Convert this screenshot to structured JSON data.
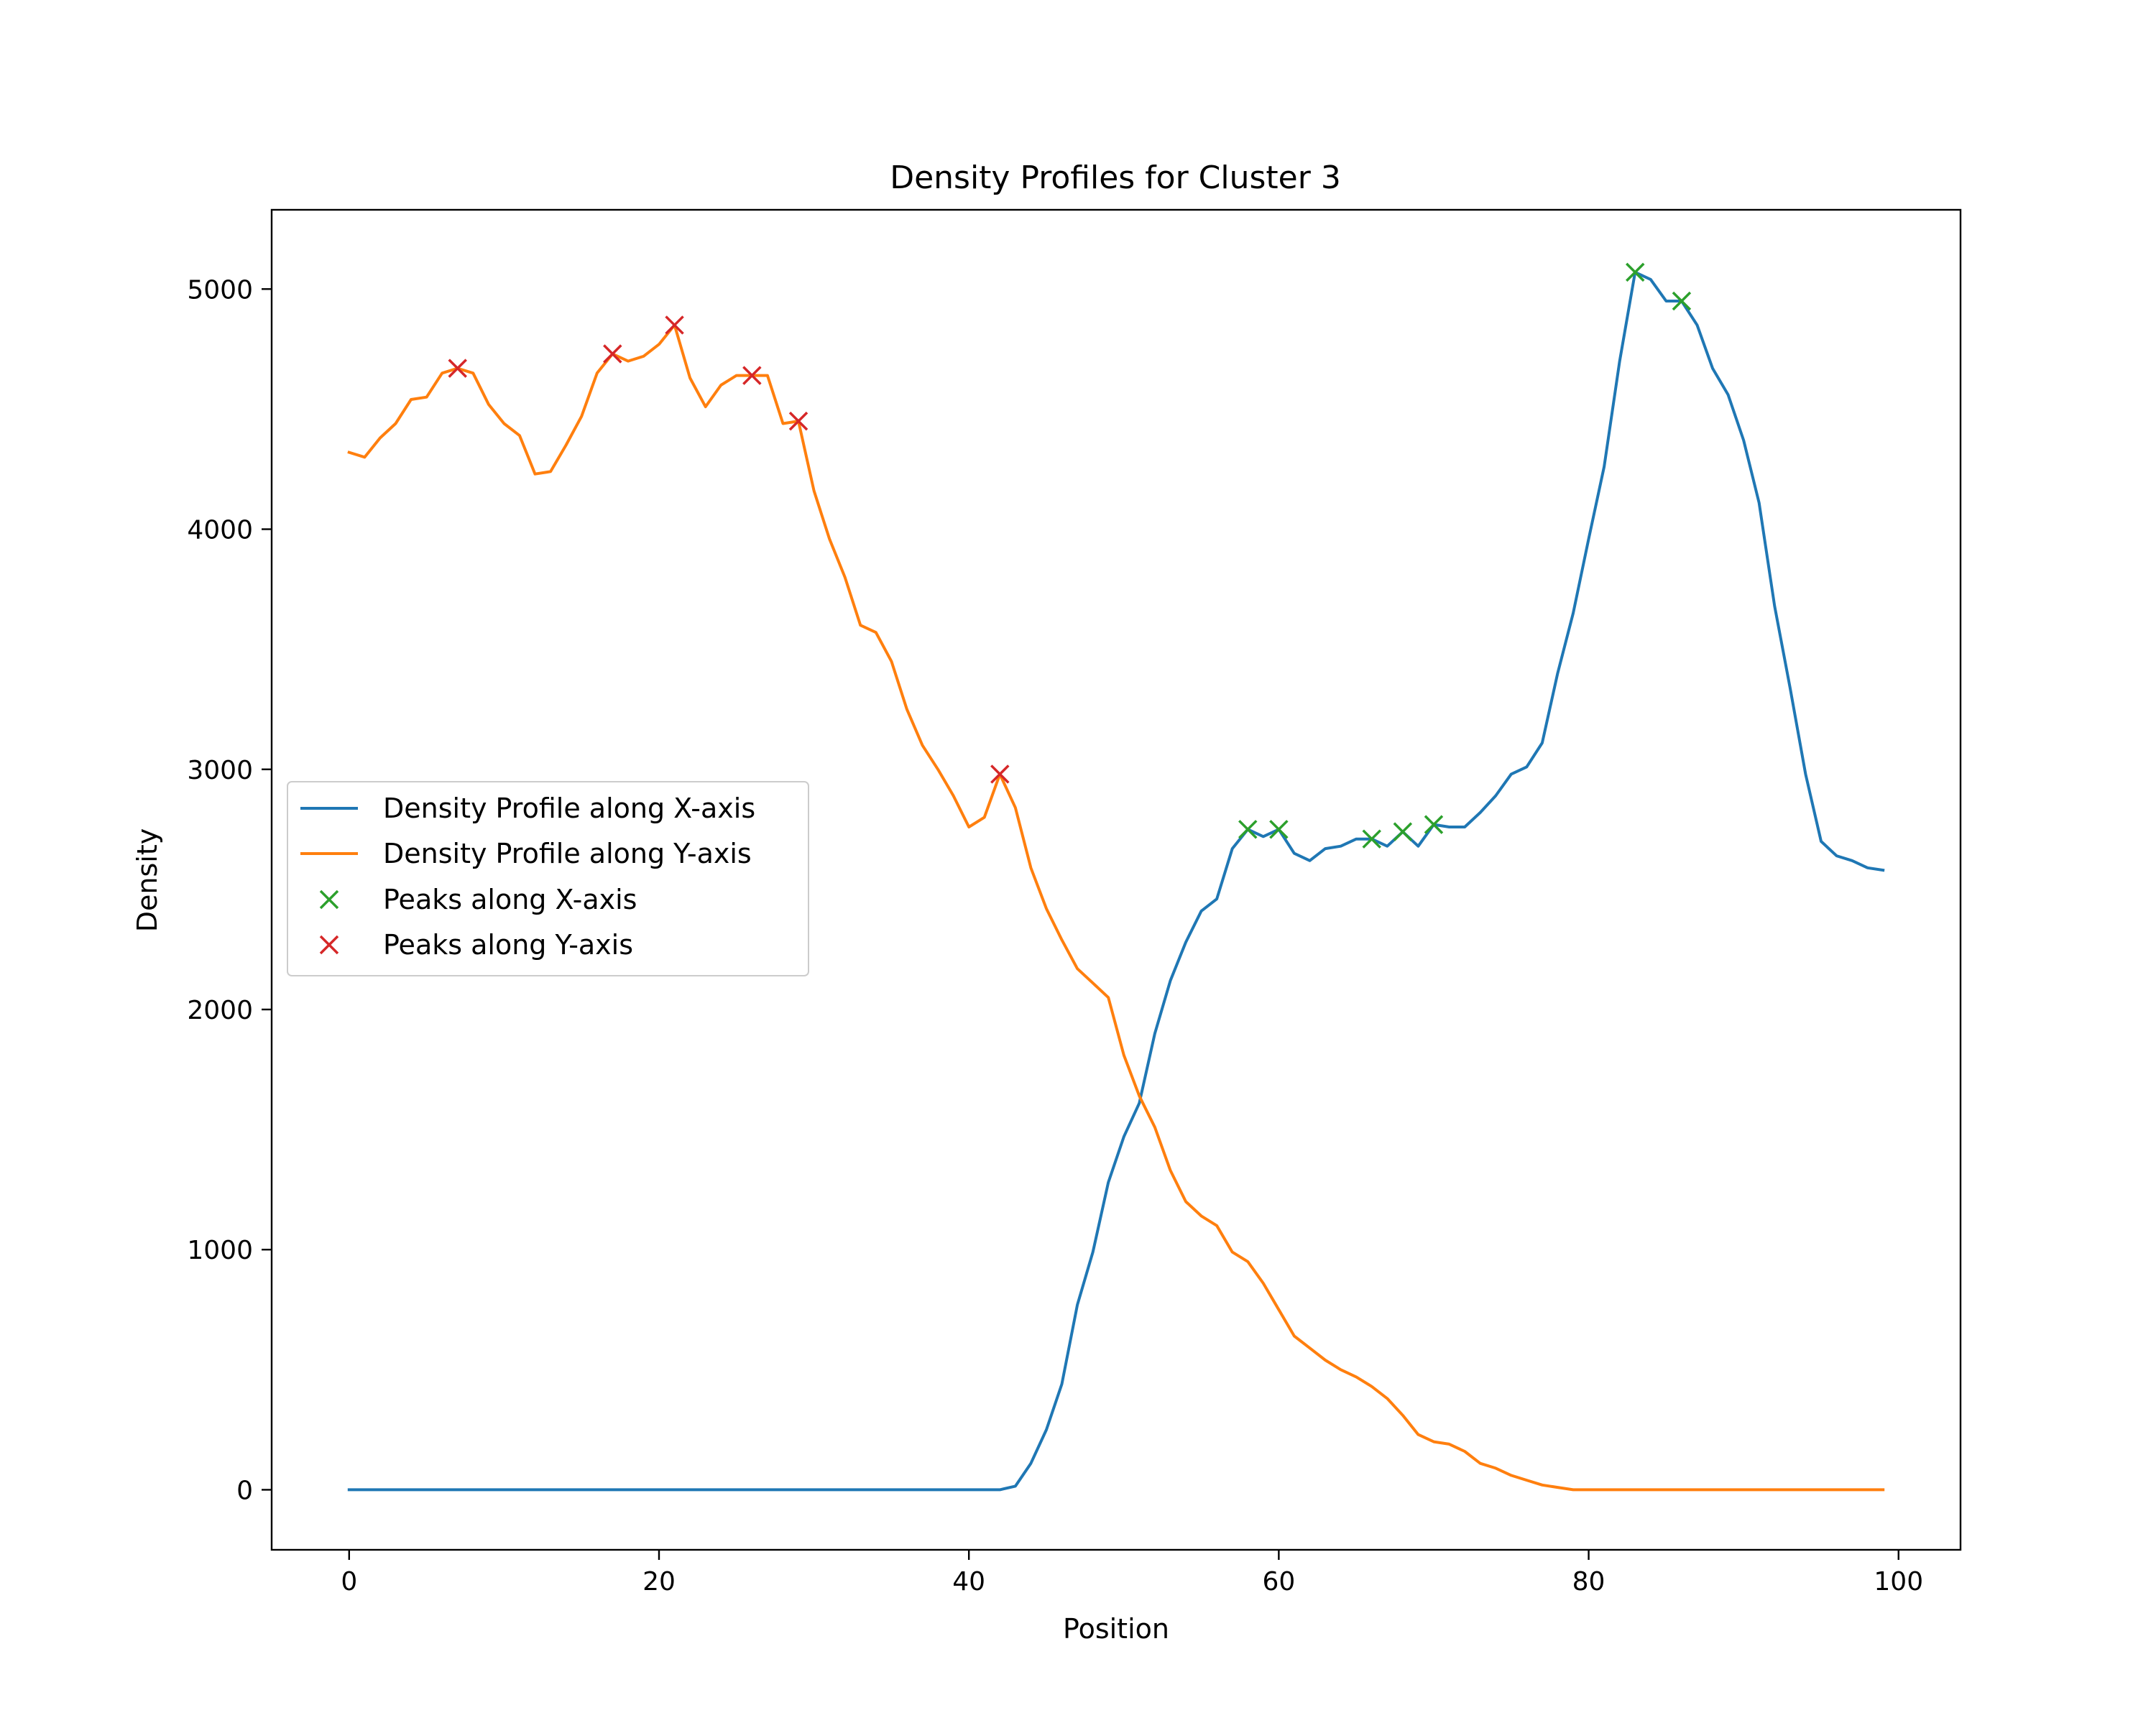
{
  "chart_data": {
    "type": "line",
    "title": "Density Profiles for Cluster 3",
    "xlabel": "Position",
    "ylabel": "Density",
    "xlim": [
      -5,
      104
    ],
    "ylim": [
      -250,
      5330
    ],
    "xticks": [
      0,
      20,
      40,
      60,
      80,
      100
    ],
    "yticks": [
      0,
      1000,
      2000,
      3000,
      4000,
      5000
    ],
    "grid": false,
    "legend_position": "center-left",
    "series": [
      {
        "name": "Density Profile along X-axis",
        "color": "#1f77b4",
        "style": "line",
        "values": [
          0,
          0,
          0,
          0,
          0,
          0,
          0,
          0,
          0,
          0,
          0,
          0,
          0,
          0,
          0,
          0,
          0,
          0,
          0,
          0,
          0,
          0,
          0,
          0,
          0,
          0,
          0,
          0,
          0,
          0,
          0,
          0,
          0,
          0,
          0,
          0,
          0,
          0,
          0,
          0,
          0,
          0,
          0,
          15,
          110,
          250,
          440,
          770,
          990,
          1280,
          1470,
          1610,
          1900,
          2120,
          2280,
          2410,
          2460,
          2670,
          2750,
          2720,
          2750,
          2650,
          2620,
          2670,
          2680,
          2710,
          2710,
          2680,
          2740,
          2680,
          2770,
          2760,
          2760,
          2820,
          2890,
          2980,
          3010,
          3110,
          3400,
          3650,
          3960,
          4260,
          4700,
          5070,
          5040,
          4950,
          4950,
          4850,
          4670,
          4560,
          4370,
          4110,
          3680,
          3340,
          2980,
          2700,
          2640,
          2620,
          2590,
          2580
        ]
      },
      {
        "name": "Density Profile along Y-axis",
        "color": "#ff7f0e",
        "style": "line",
        "values": [
          4320,
          4300,
          4380,
          4440,
          4540,
          4550,
          4650,
          4670,
          4650,
          4520,
          4440,
          4390,
          4230,
          4240,
          4350,
          4470,
          4650,
          4730,
          4700,
          4720,
          4770,
          4850,
          4630,
          4510,
          4600,
          4640,
          4640,
          4640,
          4440,
          4450,
          4160,
          3960,
          3800,
          3600,
          3570,
          3450,
          3250,
          3100,
          3000,
          2890,
          2760,
          2800,
          2980,
          2840,
          2590,
          2420,
          2290,
          2170,
          2110,
          2050,
          1810,
          1640,
          1510,
          1330,
          1200,
          1140,
          1100,
          990,
          950,
          860,
          750,
          640,
          590,
          540,
          500,
          470,
          430,
          380,
          310,
          230,
          200,
          190,
          160,
          110,
          90,
          60,
          40,
          20,
          10,
          0,
          0,
          0,
          0,
          0,
          0,
          0,
          0,
          0,
          0,
          0,
          0,
          0,
          0,
          0,
          0,
          0,
          0,
          0,
          0,
          0
        ]
      },
      {
        "name": "Peaks along X-axis",
        "color": "#2ca02c",
        "style": "marker-x",
        "points": [
          [
            58,
            2750
          ],
          [
            60,
            2750
          ],
          [
            66,
            2710
          ],
          [
            68,
            2740
          ],
          [
            70,
            2770
          ],
          [
            83,
            5070
          ],
          [
            86,
            4950
          ]
        ]
      },
      {
        "name": "Peaks along Y-axis",
        "color": "#d62728",
        "style": "marker-x",
        "points": [
          [
            7,
            4670
          ],
          [
            17,
            4730
          ],
          [
            21,
            4850
          ],
          [
            26,
            4640
          ],
          [
            29,
            4450
          ],
          [
            42,
            2980
          ]
        ]
      }
    ]
  }
}
